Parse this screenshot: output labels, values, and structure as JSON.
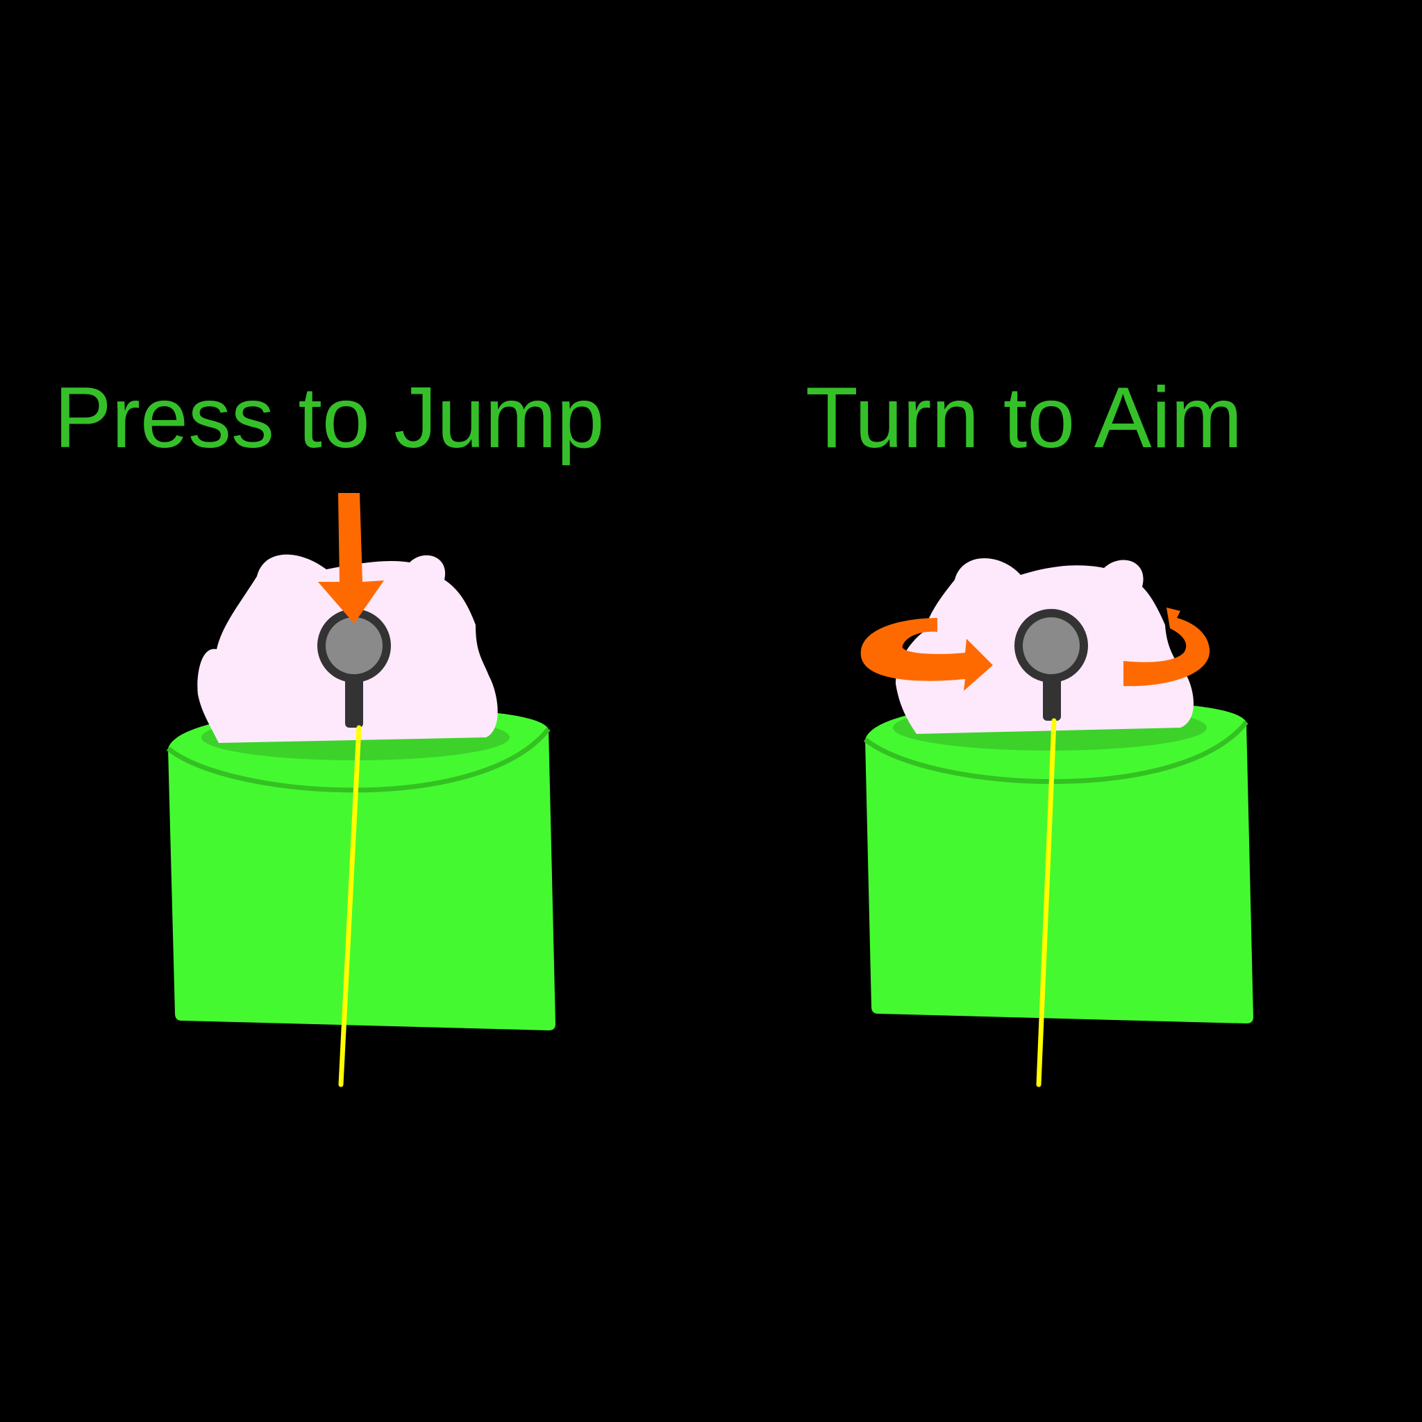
{
  "panels": [
    {
      "title": "Press to Jump",
      "action": "press",
      "arrow_icon": "arrow-down-icon"
    },
    {
      "title": "Turn to Aim",
      "action": "turn",
      "arrow_icon": "rotate-arrows-icon"
    }
  ],
  "colors": {
    "background": "#000000",
    "title_text": "#35c02a",
    "cup_body": "#45f930",
    "cup_rim_shadow": "#34c122",
    "cup_inner": "#3cd22a",
    "cloud": "#fde9fb",
    "knob": "#8a8a8a",
    "knob_outline": "#333333",
    "arrow": "#ff6a00",
    "laser": "#ffff00"
  }
}
